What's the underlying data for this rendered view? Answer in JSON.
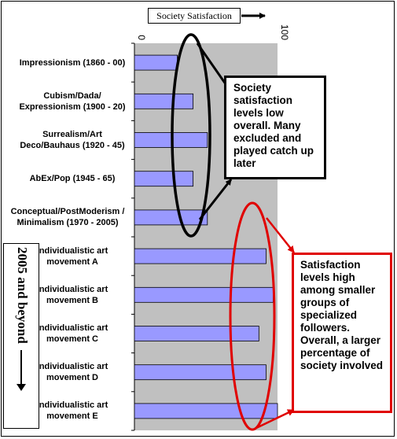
{
  "chart_data": {
    "type": "bar",
    "orientation": "horizontal",
    "categories": [
      "Impressionism (1860 - 00)",
      "Cubism/Dada/ Expressionism (1900 - 20)",
      "Surrealism/Art Deco/Bauhaus (1920 - 45)",
      "AbEx/Pop (1945 - 65)",
      "Conceptual/PostModerism / Minimalism (1970 - 2005)",
      "Individualistic art movement A",
      "Individualistic art movement B",
      "Individualistic art movement C",
      "Individualistic art movement D",
      "Individualistic art movement E"
    ],
    "values": [
      30,
      41,
      51,
      41,
      51,
      92,
      97,
      87,
      92,
      100
    ],
    "xlim": [
      0,
      100
    ],
    "x_ticks": [
      "0",
      "100"
    ],
    "legend": "Society Satisfaction",
    "legend_position": "top",
    "grid": false,
    "bar_color": "#9999ff",
    "plot_bg": "#c0c0c0",
    "annotations": [
      "Society satisfaction levels low overall. Many excluded and played catch up later",
      "Satisfaction levels high among smaller groups of specialized followers. Overall, a larger percentage of society involved"
    ],
    "era_label": "2005 and beyond"
  },
  "colors": {
    "highlight_black": "#000000",
    "highlight_red": "#e00000"
  }
}
